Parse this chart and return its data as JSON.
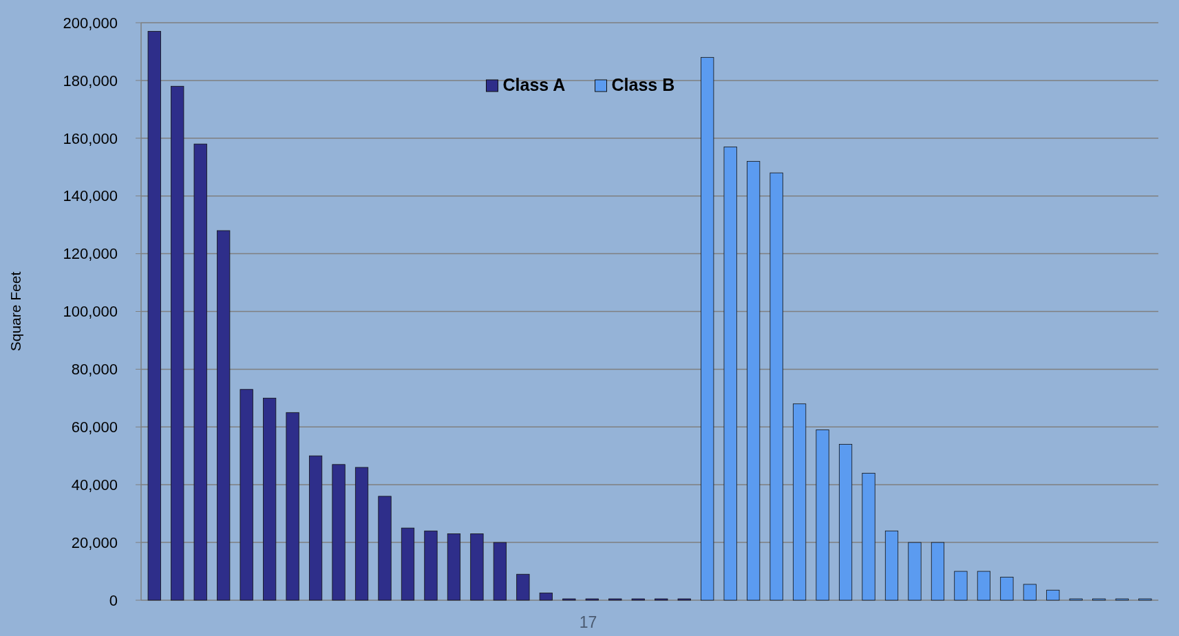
{
  "chart_data": {
    "type": "bar",
    "ylabel": "Square Feet",
    "categories": [
      null,
      null,
      null,
      null,
      null,
      null,
      null,
      null,
      null,
      null,
      null,
      null,
      null,
      null,
      null,
      null,
      null,
      null,
      null,
      null,
      null,
      null,
      null,
      null,
      null,
      null,
      null,
      null,
      null,
      null,
      null,
      null,
      null,
      null,
      null,
      null,
      null,
      null,
      null,
      null,
      null,
      null,
      null,
      null
    ],
    "series": [
      {
        "name": "Class A",
        "color": "#2e2e8a",
        "values": [
          197000,
          178000,
          158000,
          128000,
          73000,
          70000,
          65000,
          50000,
          47000,
          46000,
          36000,
          25000,
          24000,
          23000,
          23000,
          20000,
          9000,
          2500,
          0,
          0,
          0,
          0,
          0,
          0,
          null,
          null,
          null,
          null,
          null,
          null,
          null,
          null,
          null,
          null,
          null,
          null,
          null,
          null,
          null,
          null,
          null,
          null,
          null,
          null
        ]
      },
      {
        "name": "Class B",
        "color": "#5b9bf0",
        "values": [
          null,
          null,
          null,
          null,
          null,
          null,
          null,
          null,
          null,
          null,
          null,
          null,
          null,
          null,
          null,
          null,
          null,
          null,
          null,
          null,
          null,
          null,
          null,
          null,
          188000,
          157000,
          152000,
          148000,
          68000,
          59000,
          54000,
          44000,
          24000,
          20000,
          20000,
          10000,
          10000,
          8000,
          5500,
          3500,
          0,
          0,
          0,
          0
        ]
      }
    ],
    "ylim": [
      0,
      200000
    ],
    "yticks": [
      {
        "value": 0,
        "label": "0"
      },
      {
        "value": 20000,
        "label": "20,000"
      },
      {
        "value": 40000,
        "label": "40,000"
      },
      {
        "value": 60000,
        "label": "60,000"
      },
      {
        "value": 80000,
        "label": "80,000"
      },
      {
        "value": 100000,
        "label": "100,000"
      },
      {
        "value": 120000,
        "label": "120,000"
      },
      {
        "value": 140000,
        "label": "140,000"
      },
      {
        "value": 160000,
        "label": "160,000"
      },
      {
        "value": 180000,
        "label": "180,000"
      },
      {
        "value": 200000,
        "label": "200,000"
      }
    ],
    "grid": "y",
    "legend": "top",
    "annotations": [
      "17"
    ]
  }
}
